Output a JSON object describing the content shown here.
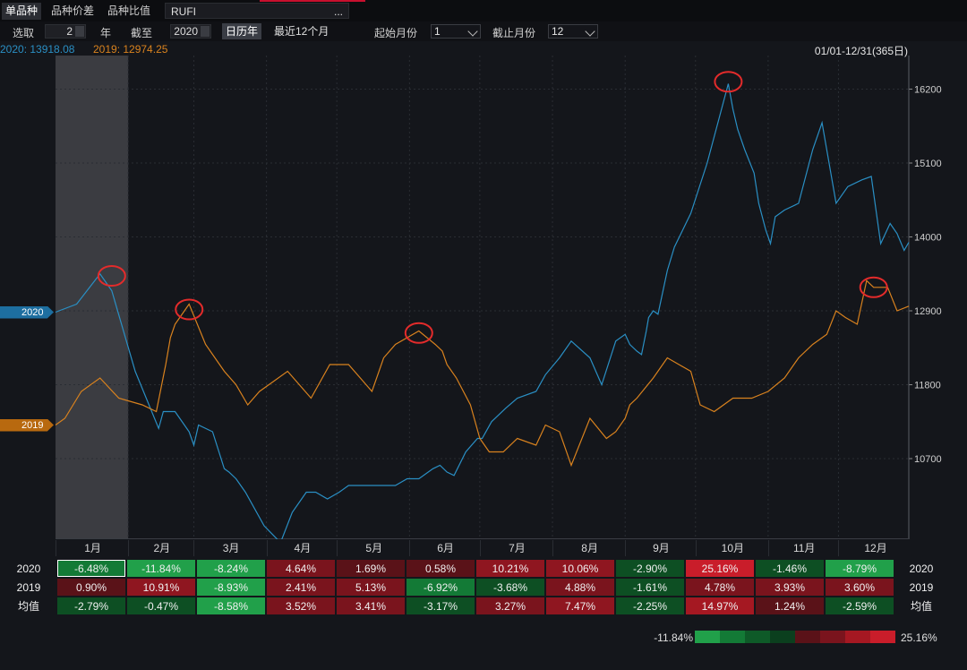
{
  "tabs": [
    {
      "label": "单品种",
      "active": true
    },
    {
      "label": "品种价差",
      "active": false
    },
    {
      "label": "品种比值",
      "active": false
    }
  ],
  "symbol": "RUFI",
  "symbol_more": "...",
  "controls": {
    "pick_label": "选取",
    "pick_value": "2",
    "year_label": "年",
    "until_label": "截至",
    "until_value": "2020",
    "calendar_btn": "日历年",
    "recent_btn": "最近12个月",
    "start_month_label": "起始月份",
    "start_month_value": "1",
    "end_month_label": "截止月份",
    "end_month_value": "12"
  },
  "legend": [
    {
      "label": "2020: 13918.08",
      "color": "#2a8fc4"
    },
    {
      "label": "2019: 12974.25",
      "color": "#d9821e"
    }
  ],
  "date_range": "01/01-12/31(365日)",
  "series_tags": [
    {
      "label": "2020",
      "color": "#1d6ea0"
    },
    {
      "label": "2019",
      "color": "#b8690f"
    }
  ],
  "chart_data": {
    "type": "line",
    "x_axis": "day of year",
    "xlim": [
      1,
      365
    ],
    "ylim": [
      9500,
      16700
    ],
    "y_ticks": [
      16200,
      15100,
      14000,
      12900,
      11800,
      10700
    ],
    "months": [
      "1月",
      "2月",
      "3月",
      "4月",
      "5月",
      "6月",
      "7月",
      "8月",
      "9月",
      "10月",
      "11月",
      "12月"
    ],
    "highlight_month": "1月",
    "series": [
      {
        "name": "2020",
        "color": "#2a8fc4",
        "x": [
          1,
          10,
          20,
          25,
          35,
          45,
          47,
          52,
          58,
          60,
          62,
          68,
          73,
          75,
          78,
          82,
          90,
          97,
          102,
          108,
          112,
          117,
          122,
          126,
          131,
          136,
          141,
          146,
          151,
          156,
          162,
          165,
          168,
          171,
          176,
          181,
          183,
          187,
          193,
          198,
          206,
          210,
          216,
          221,
          229,
          234,
          240,
          244,
          246,
          249,
          251,
          253,
          254,
          256,
          258,
          262,
          265,
          272,
          279,
          288,
          290,
          292,
          295,
          299,
          301,
          304,
          306,
          308,
          312,
          318,
          324,
          328,
          334,
          339,
          345,
          349,
          353,
          357,
          360,
          363,
          365
        ],
        "y": [
          12880,
          13000,
          13450,
          13200,
          12000,
          11150,
          11400,
          11400,
          11100,
          10900,
          11200,
          11100,
          10550,
          10500,
          10400,
          10200,
          9700,
          9450,
          9900,
          10200,
          10200,
          10100,
          10200,
          10300,
          10300,
          10300,
          10300,
          10300,
          10400,
          10400,
          10550,
          10600,
          10500,
          10450,
          10800,
          11000,
          11000,
          11250,
          11450,
          11600,
          11700,
          11950,
          12200,
          12450,
          12200,
          11800,
          12450,
          12550,
          12400,
          12300,
          12250,
          12600,
          12800,
          12900,
          12850,
          13500,
          13850,
          14350,
          15100,
          16280,
          15900,
          15600,
          15300,
          14950,
          14500,
          14100,
          13900,
          14300,
          14400,
          14500,
          15300,
          15700,
          14500,
          14750,
          14850,
          14900,
          13900,
          14200,
          14050,
          13800,
          13920
        ]
      },
      {
        "name": "2019",
        "color": "#d9821e",
        "x": [
          1,
          5,
          12,
          20,
          28,
          38,
          44,
          48,
          50,
          52,
          56,
          58,
          65,
          73,
          78,
          83,
          88,
          92,
          100,
          105,
          110,
          118,
          126,
          131,
          136,
          141,
          146,
          156,
          163,
          166,
          168,
          172,
          178,
          182,
          186,
          192,
          198,
          206,
          210,
          216,
          221,
          229,
          236,
          240,
          244,
          246,
          249,
          256,
          262,
          272,
          276,
          282,
          290,
          298,
          305,
          312,
          318,
          324,
          330,
          334,
          338,
          343,
          347,
          350,
          353,
          356,
          360,
          365
        ],
        "y": [
          11200,
          11300,
          11700,
          11900,
          11600,
          11500,
          11400,
          12100,
          12500,
          12700,
          12900,
          13000,
          12400,
          12000,
          11800,
          11500,
          11700,
          11800,
          12000,
          11800,
          11600,
          12100,
          12100,
          11900,
          11700,
          12200,
          12400,
          12600,
          12400,
          12300,
          12100,
          11900,
          11500,
          11000,
          10800,
          10800,
          11000,
          10900,
          11200,
          11100,
          10600,
          11300,
          11000,
          11100,
          11300,
          11500,
          11600,
          11900,
          12200,
          12000,
          11500,
          11400,
          11600,
          11600,
          11700,
          11900,
          12200,
          12400,
          12550,
          12900,
          12800,
          12700,
          13350,
          13250,
          13250,
          13250,
          12900,
          12970
        ]
      }
    ],
    "markers": [
      {
        "series": "2020",
        "x": 25,
        "y": 13420
      },
      {
        "series": "2019",
        "x": 58,
        "y": 12920
      },
      {
        "series": "2019",
        "x": 156,
        "y": 12570
      },
      {
        "series": "2020",
        "x": 288,
        "y": 16310
      },
      {
        "series": "2019",
        "x": 350,
        "y": 13250
      }
    ]
  },
  "table": {
    "rows": [
      {
        "label": "2020",
        "values": [
          "-6.48%",
          "-11.84%",
          "-8.24%",
          "4.64%",
          "1.69%",
          "0.58%",
          "10.21%",
          "10.06%",
          "-2.90%",
          "25.16%",
          "-1.46%",
          "-8.79%"
        ]
      },
      {
        "label": "2019",
        "values": [
          "0.90%",
          "10.91%",
          "-8.93%",
          "2.41%",
          "5.13%",
          "-6.92%",
          "-3.68%",
          "4.88%",
          "-1.61%",
          "4.78%",
          "3.93%",
          "3.60%"
        ]
      },
      {
        "label": "均值",
        "values": [
          "-2.79%",
          "-0.47%",
          "-8.58%",
          "3.52%",
          "3.41%",
          "-3.17%",
          "3.27%",
          "7.47%",
          "-2.25%",
          "14.97%",
          "1.24%",
          "-2.59%"
        ]
      }
    ]
  },
  "color_scale": {
    "min_label": "-11.84%",
    "max_label": "25.16%",
    "colors": [
      "#21a04a",
      "#137a36",
      "#0e5a28",
      "#0b3f1e",
      "#5a1218",
      "#7a141d",
      "#a51822",
      "#c91d2a"
    ]
  }
}
